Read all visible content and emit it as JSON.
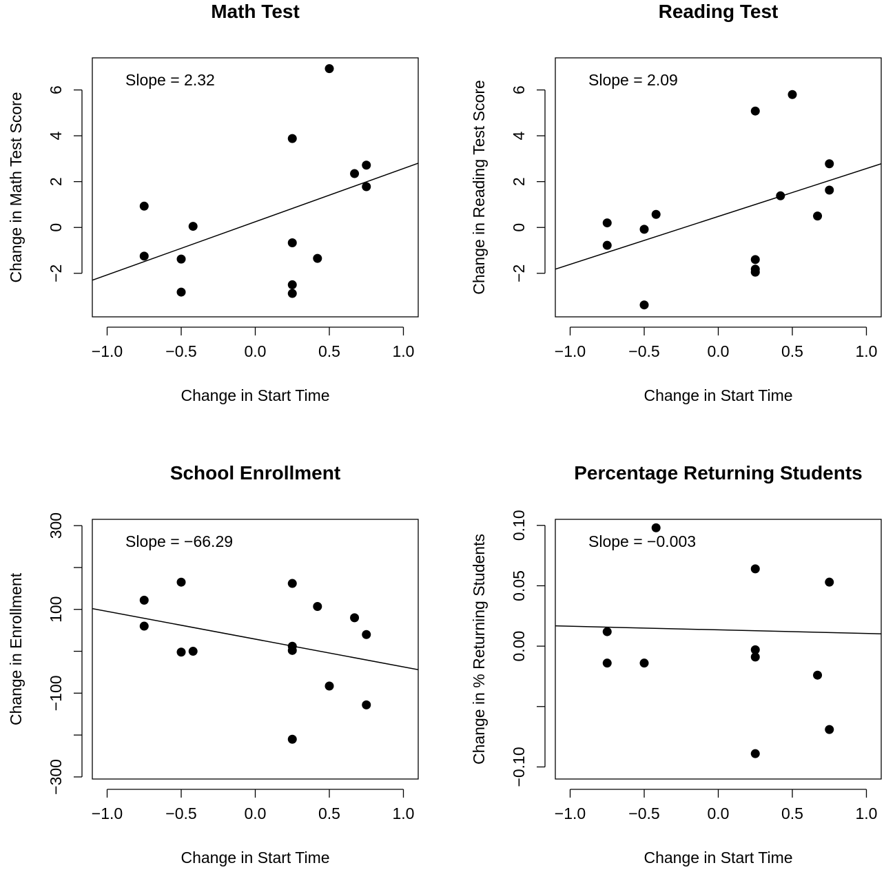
{
  "chart_data": [
    {
      "type": "scatter",
      "title": "Math Test",
      "xlabel": "Change in Start Time",
      "ylabel": "Change in Math Test Score",
      "annotation": "Slope =  2.32",
      "xlim": [
        -1.1,
        1.1
      ],
      "ylim": [
        -3.9,
        7.4
      ],
      "xticks": [
        -1.0,
        -0.5,
        0.0,
        0.5,
        1.0
      ],
      "xtick_labels": [
        "−1.0",
        "−0.5",
        "0.0",
        "0.5",
        "1.0"
      ],
      "yticks": [
        -2,
        0,
        2,
        4,
        6
      ],
      "ytick_labels": [
        "−2",
        "0",
        "2",
        "4",
        "6"
      ],
      "fit_line": {
        "slope": 2.32,
        "intercept": 0.25
      },
      "points": [
        {
          "x": -0.75,
          "y": 0.93
        },
        {
          "x": -0.75,
          "y": -1.25
        },
        {
          "x": -0.5,
          "y": -1.38
        },
        {
          "x": -0.5,
          "y": -2.82
        },
        {
          "x": -0.42,
          "y": 0.05
        },
        {
          "x": 0.25,
          "y": 3.88
        },
        {
          "x": 0.25,
          "y": -0.67
        },
        {
          "x": 0.25,
          "y": -2.5
        },
        {
          "x": 0.25,
          "y": -2.88
        },
        {
          "x": 0.42,
          "y": -1.35
        },
        {
          "x": 0.5,
          "y": 6.93
        },
        {
          "x": 0.67,
          "y": 2.35
        },
        {
          "x": 0.75,
          "y": 2.72
        },
        {
          "x": 0.75,
          "y": 1.78
        }
      ]
    },
    {
      "type": "scatter",
      "title": "Reading Test",
      "xlabel": "Change in Start Time",
      "ylabel": "Change in Reading Test Score",
      "annotation": "Slope =  2.09",
      "xlim": [
        -1.1,
        1.1
      ],
      "ylim": [
        -3.9,
        7.4
      ],
      "xticks": [
        -1.0,
        -0.5,
        0.0,
        0.5,
        1.0
      ],
      "xtick_labels": [
        "−1.0",
        "−0.5",
        "0.0",
        "0.5",
        "1.0"
      ],
      "yticks": [
        -2,
        0,
        2,
        4,
        6
      ],
      "ytick_labels": [
        "−2",
        "0",
        "2",
        "4",
        "6"
      ],
      "fit_line": {
        "slope": 2.09,
        "intercept": 0.48
      },
      "points": [
        {
          "x": -0.75,
          "y": 0.2
        },
        {
          "x": -0.75,
          "y": -0.78
        },
        {
          "x": -0.5,
          "y": -0.08
        },
        {
          "x": -0.5,
          "y": -3.38
        },
        {
          "x": -0.42,
          "y": 0.57
        },
        {
          "x": 0.25,
          "y": 5.08
        },
        {
          "x": 0.25,
          "y": -1.4
        },
        {
          "x": 0.25,
          "y": -1.82
        },
        {
          "x": 0.25,
          "y": -1.95
        },
        {
          "x": 0.42,
          "y": 1.38
        },
        {
          "x": 0.5,
          "y": 5.8
        },
        {
          "x": 0.67,
          "y": 0.5
        },
        {
          "x": 0.75,
          "y": 2.78
        },
        {
          "x": 0.75,
          "y": 1.63
        }
      ]
    },
    {
      "type": "scatter",
      "title": "School Enrollment",
      "xlabel": "Change in Start Time",
      "ylabel": "Change in Enrollment",
      "annotation": "Slope =  −66.29",
      "xlim": [
        -1.1,
        1.1
      ],
      "ylim": [
        -305,
        315
      ],
      "xticks": [
        -1.0,
        -0.5,
        0.0,
        0.5,
        1.0
      ],
      "xtick_labels": [
        "−1.0",
        "−0.5",
        "0.0",
        "0.5",
        "1.0"
      ],
      "yticks": [
        -300,
        -100,
        100,
        300
      ],
      "ytick_labels": [
        "−300",
        "−100",
        "100",
        "300"
      ],
      "yticks_minor": [
        -200,
        0,
        200
      ],
      "fit_line": {
        "slope": -66.29,
        "intercept": 29
      },
      "points": [
        {
          "x": -0.75,
          "y": 122
        },
        {
          "x": -0.75,
          "y": 60
        },
        {
          "x": -0.5,
          "y": 165
        },
        {
          "x": -0.5,
          "y": -2
        },
        {
          "x": -0.42,
          "y": 0
        },
        {
          "x": 0.25,
          "y": 162
        },
        {
          "x": 0.25,
          "y": 12
        },
        {
          "x": 0.25,
          "y": 2
        },
        {
          "x": 0.25,
          "y": -210
        },
        {
          "x": 0.42,
          "y": 107
        },
        {
          "x": 0.5,
          "y": -83
        },
        {
          "x": 0.67,
          "y": 80
        },
        {
          "x": 0.75,
          "y": 40
        },
        {
          "x": 0.75,
          "y": -128
        }
      ]
    },
    {
      "type": "scatter",
      "title": "Percentage Returning Students",
      "xlabel": "Change in Start Time",
      "ylabel": "Change in % Returning Students",
      "annotation": "Slope =  −0.003",
      "xlim": [
        -1.1,
        1.1
      ],
      "ylim": [
        -0.11,
        0.105
      ],
      "xticks": [
        -1.0,
        -0.5,
        0.0,
        0.5,
        1.0
      ],
      "xtick_labels": [
        "−1.0",
        "−0.5",
        "0.0",
        "0.5",
        "1.0"
      ],
      "yticks": [
        -0.1,
        0.0,
        0.05,
        0.1
      ],
      "ytick_labels": [
        "−0.10",
        "0.00",
        "0.05",
        "0.10"
      ],
      "yticks_minor": [
        -0.05
      ],
      "fit_line": {
        "slope": -0.003,
        "intercept": 0.0135
      },
      "points": [
        {
          "x": -0.75,
          "y": 0.012
        },
        {
          "x": -0.75,
          "y": -0.014
        },
        {
          "x": -0.5,
          "y": -0.014
        },
        {
          "x": -0.42,
          "y": 0.098
        },
        {
          "x": 0.25,
          "y": 0.064
        },
        {
          "x": 0.25,
          "y": -0.003
        },
        {
          "x": 0.25,
          "y": -0.009
        },
        {
          "x": 0.25,
          "y": -0.089
        },
        {
          "x": 0.67,
          "y": -0.024
        },
        {
          "x": 0.75,
          "y": 0.053
        },
        {
          "x": 0.75,
          "y": -0.069
        }
      ]
    }
  ]
}
